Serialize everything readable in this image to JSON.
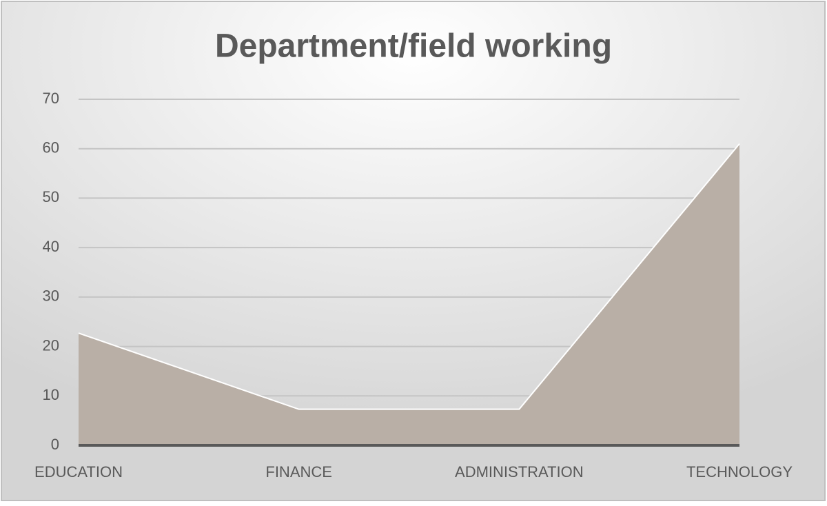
{
  "chart_data": {
    "type": "area",
    "title": "Department/field working",
    "categories": [
      "EDUCATION",
      "FINANCE",
      "ADMINISTRATION",
      "TECHNOLOGY"
    ],
    "values": [
      22.7,
      7.3,
      7.3,
      61
    ],
    "color": "#b9afa6",
    "ylim": [
      0,
      70
    ],
    "yticks": [
      0,
      10,
      20,
      30,
      40,
      50,
      60,
      70
    ],
    "grid": true
  }
}
